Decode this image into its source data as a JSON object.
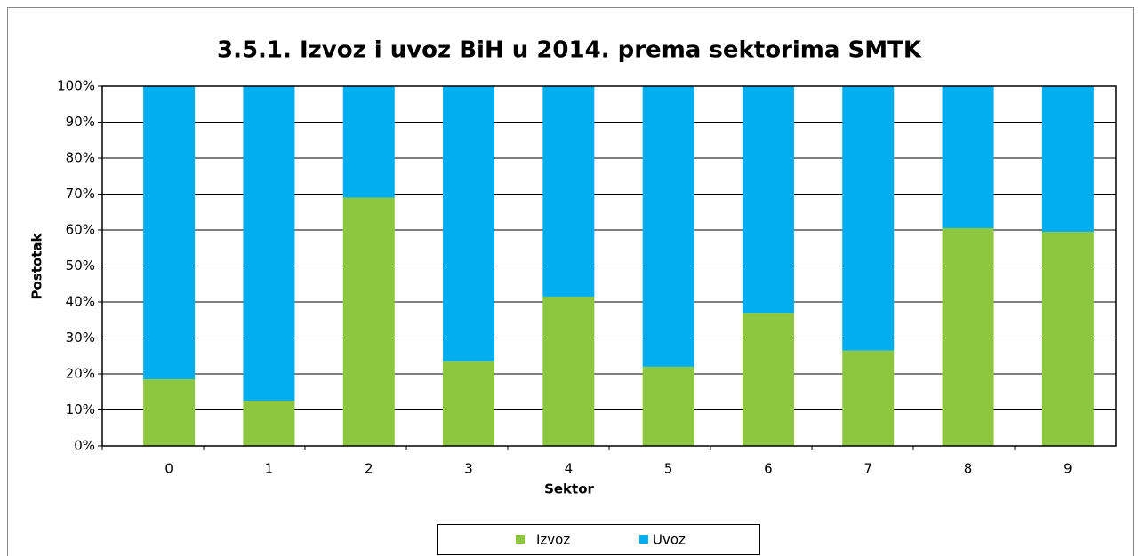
{
  "chart_data": {
    "type": "stacked_bar",
    "title": "3.5.1. Izvoz i uvoz BiH u 2014. prema sektorima SMTK",
    "x_label": "Sektor",
    "y_label": "Postotak",
    "categories": [
      "0",
      "1",
      "2",
      "3",
      "4",
      "5",
      "6",
      "7",
      "8",
      "9"
    ],
    "series": [
      {
        "name": "Izvoz",
        "color": "#8dc63f",
        "values": [
          18.5,
          12.5,
          69,
          23.5,
          41.5,
          22,
          37,
          26.5,
          60.5,
          59.5
        ]
      },
      {
        "name": "Uvoz",
        "color": "#00aeef",
        "values": [
          81.5,
          87.5,
          31,
          76.5,
          58.5,
          78,
          63,
          73.5,
          39.5,
          40.5
        ]
      }
    ],
    "ylim": [
      0,
      100
    ],
    "yticks": [
      {
        "value": 0,
        "label": "0%"
      },
      {
        "value": 10,
        "label": "10%"
      },
      {
        "value": 20,
        "label": "20%"
      },
      {
        "value": 30,
        "label": "30%"
      },
      {
        "value": 40,
        "label": "40%"
      },
      {
        "value": 50,
        "label": "50%"
      },
      {
        "value": 60,
        "label": "60%"
      },
      {
        "value": 70,
        "label": "70%"
      },
      {
        "value": 80,
        "label": "80%"
      },
      {
        "value": 90,
        "label": "90%"
      },
      {
        "value": 100,
        "label": "100%"
      }
    ],
    "grid": true,
    "legend": "bottom"
  }
}
